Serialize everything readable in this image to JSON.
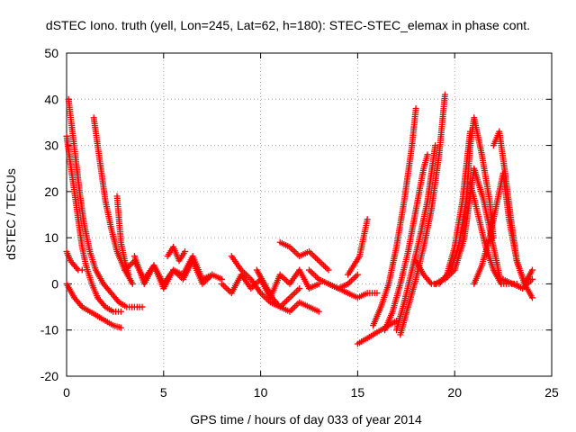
{
  "chart_data": {
    "type": "scatter",
    "title": "dSTEC Iono. truth (yell, Lon=245, Lat=62, h=180): STEC-STEC_elemax in phase cont.",
    "xlabel": "GPS time / hours of day 033 of year 2014",
    "ylabel": "dSTEC  / TECUs",
    "xlim": [
      0,
      25
    ],
    "ylim": [
      -20,
      50
    ],
    "xticks": [
      "0",
      "5",
      "10",
      "15",
      "20",
      "25"
    ],
    "yticks": [
      "-20",
      "-10",
      "0",
      "10",
      "20",
      "30",
      "40",
      "50"
    ],
    "grid": true,
    "marker": "+",
    "color": "#ff0000",
    "series": [
      {
        "x": [
          0.0,
          0.2,
          0.4,
          0.6,
          0.8,
          1.0,
          1.3,
          1.6,
          2.0,
          2.4,
          2.8
        ],
        "y": [
          32,
          26,
          20,
          14,
          8,
          4,
          0,
          -3,
          -5,
          -6,
          -6
        ]
      },
      {
        "x": [
          0.1,
          0.3,
          0.5,
          0.7,
          0.9,
          1.2,
          1.5,
          1.9,
          2.3,
          2.7,
          3.1,
          3.5,
          3.9
        ],
        "y": [
          40,
          33,
          26,
          19,
          13,
          7,
          3,
          0,
          -2,
          -4,
          -5,
          -5,
          -5
        ]
      },
      {
        "x": [
          0.0,
          0.4,
          0.8,
          1.2,
          1.6,
          2.0,
          2.4,
          2.8
        ],
        "y": [
          0,
          -3,
          -5,
          -6,
          -7,
          -8,
          -9,
          -9.5
        ]
      },
      {
        "x": [
          0.0,
          0.2,
          0.4,
          0.6,
          0.8
        ],
        "y": [
          7,
          5,
          4,
          3,
          3
        ]
      },
      {
        "x": [
          1.4,
          1.6,
          1.8,
          2.0,
          2.3,
          2.6,
          3.0,
          3.4
        ],
        "y": [
          36,
          30,
          24,
          18,
          12,
          7,
          3,
          0
        ]
      },
      {
        "x": [
          2.6,
          2.7,
          2.8,
          3.0,
          3.2
        ],
        "y": [
          19,
          14,
          9,
          5,
          2
        ]
      },
      {
        "x": [
          3.0,
          3.5,
          4.0,
          4.5,
          5.0,
          5.5,
          6.0,
          6.5,
          7.0,
          7.5,
          8.0
        ],
        "y": [
          3,
          5,
          1,
          4,
          0,
          3,
          2,
          6,
          1,
          2,
          1
        ]
      },
      {
        "x": [
          3.5,
          4.0,
          4.5,
          5.0,
          5.5,
          6.0,
          6.5,
          7.0,
          7.5
        ],
        "y": [
          6,
          0,
          4,
          -1,
          3,
          1,
          5,
          0,
          2
        ]
      },
      {
        "x": [
          5.2,
          5.5,
          5.8,
          6.1
        ],
        "y": [
          6,
          8,
          5,
          7
        ]
      },
      {
        "x": [
          8.0,
          8.5,
          9.0,
          9.5,
          10.0,
          10.5,
          11.0,
          11.5,
          12.0,
          12.5,
          13.0
        ],
        "y": [
          0,
          -2,
          2,
          -1,
          1,
          -3,
          2,
          0,
          3,
          -1,
          0
        ]
      },
      {
        "x": [
          8.5,
          9.0,
          9.5,
          10.0,
          10.5,
          11.0,
          11.5,
          12.0
        ],
        "y": [
          6,
          3,
          1,
          -2,
          -4,
          -5,
          -3,
          -1
        ]
      },
      {
        "x": [
          9.8,
          10.2,
          10.6,
          11.0,
          11.5,
          12.0,
          12.5,
          13.0
        ],
        "y": [
          3,
          0,
          -3,
          -5,
          -6,
          -4,
          -5,
          -6
        ]
      },
      {
        "x": [
          11.0,
          11.5,
          12.0,
          12.5,
          13.0,
          13.5
        ],
        "y": [
          9,
          8,
          6,
          7,
          5,
          3
        ]
      },
      {
        "x": [
          12.5,
          13.0,
          13.5,
          14.0,
          14.5,
          15.0
        ],
        "y": [
          3,
          1,
          0,
          -1,
          0,
          2
        ]
      },
      {
        "x": [
          13.5,
          14.0,
          14.5,
          15.0,
          15.5,
          16.0
        ],
        "y": [
          0,
          -1,
          -2,
          -3,
          -2,
          -2
        ]
      },
      {
        "x": [
          14.5,
          14.8,
          15.1,
          15.3,
          15.5
        ],
        "y": [
          2,
          4,
          6,
          10,
          14
        ]
      },
      {
        "x": [
          15.0,
          15.4,
          15.8,
          16.2,
          16.6,
          17.0
        ],
        "y": [
          -13,
          -12,
          -11,
          -10,
          -9,
          -8
        ]
      },
      {
        "x": [
          15.8,
          16.2,
          16.6,
          17.0,
          17.4,
          17.8,
          18.0
        ],
        "y": [
          -9,
          -5,
          0,
          8,
          18,
          30,
          38
        ]
      },
      {
        "x": [
          16.4,
          16.8,
          17.2,
          17.6,
          18.0,
          18.4,
          18.6
        ],
        "y": [
          -10,
          -6,
          0,
          7,
          16,
          25,
          28
        ]
      },
      {
        "x": [
          17.0,
          17.4,
          17.8,
          18.2,
          18.6,
          19.0
        ],
        "y": [
          -10,
          -4,
          3,
          10,
          18,
          30
        ]
      },
      {
        "x": [
          17.2,
          17.6,
          18.0,
          18.4,
          18.8,
          19.2,
          19.5
        ],
        "y": [
          -11,
          -5,
          1,
          8,
          16,
          28,
          41
        ]
      },
      {
        "x": [
          18.0,
          18.4,
          18.8,
          19.2,
          19.6,
          20.0,
          20.4,
          20.8
        ],
        "y": [
          5,
          2,
          0,
          0,
          2,
          8,
          18,
          33
        ]
      },
      {
        "x": [
          19.0,
          19.4,
          19.8,
          20.2,
          20.6,
          20.8,
          21.0,
          21.4,
          21.8,
          22.0
        ],
        "y": [
          0,
          1,
          3,
          8,
          18,
          30,
          36,
          28,
          18,
          10
        ]
      },
      {
        "x": [
          19.5,
          20.0,
          20.5,
          21.0,
          21.5,
          22.0,
          22.4
        ],
        "y": [
          1,
          3,
          10,
          25,
          18,
          8,
          0
        ]
      },
      {
        "x": [
          20.8,
          21.2,
          21.6,
          22.0,
          22.4,
          22.8,
          23.2
        ],
        "y": [
          22,
          15,
          8,
          3,
          0,
          0,
          0
        ]
      },
      {
        "x": [
          21.0,
          21.4,
          21.8,
          22.2,
          22.5,
          22.8,
          23.2,
          23.6,
          24.0
        ],
        "y": [
          0,
          4,
          10,
          18,
          24,
          14,
          5,
          0,
          3
        ]
      },
      {
        "x": [
          22.0,
          22.3,
          22.6,
          22.9,
          23.2,
          23.6,
          24.0
        ],
        "y": [
          30,
          33,
          24,
          14,
          5,
          0,
          -3
        ]
      },
      {
        "x": [
          22.5,
          23.0,
          23.5,
          24.0
        ],
        "y": [
          1,
          0,
          -1,
          1
        ]
      }
    ]
  }
}
